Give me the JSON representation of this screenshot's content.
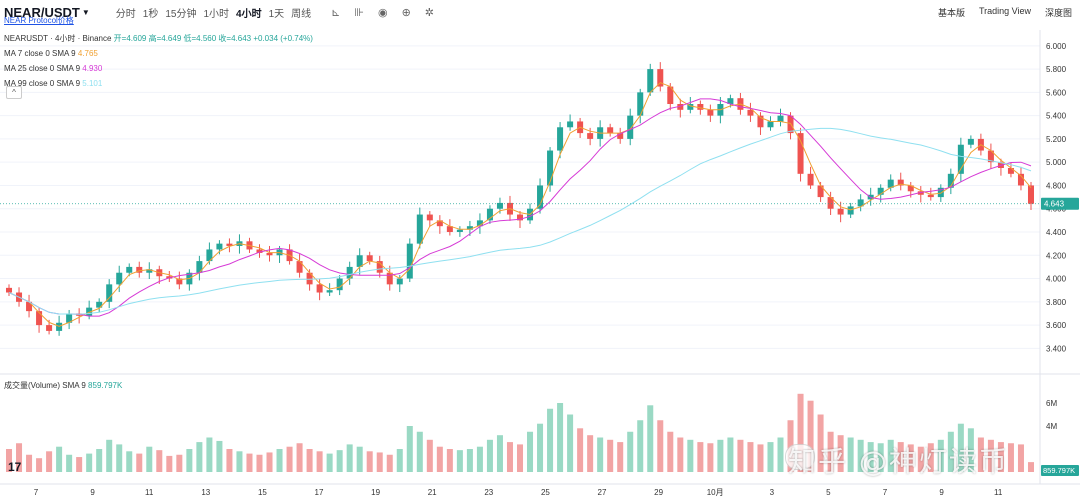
{
  "header": {
    "symbol": "NEAR/USDT",
    "sub_link": "NEAR Protocol价格",
    "intervals": [
      "分时",
      "1秒",
      "15分钟",
      "1小时",
      "4小时",
      "1天",
      "周线"
    ],
    "active_interval": "4小时",
    "views": [
      "基本版",
      "Trading View",
      "深度图"
    ]
  },
  "legend": {
    "title": "NEARUSDT · 4小时 · Binance",
    "ohlc": "开=4.609 高=4.649 低=4.560 收=4.643 +0.034 (+0.74%)",
    "ma7": {
      "label": "MA 7 close 0 SMA 9",
      "value": "4.765"
    },
    "ma25": {
      "label": "MA 25 close 0 SMA 9",
      "value": "4.930"
    },
    "ma99": {
      "label": "MA 99 close 0 SMA 9",
      "value": "5.101"
    },
    "collapse": "^"
  },
  "volume_legend": {
    "label": "成交量(Volume) SMA 9",
    "value": "859.797K"
  },
  "watermark": "知乎 @神灯读币",
  "logo": "17",
  "chart_data": {
    "type": "candlestick",
    "price_axis": {
      "ticks": [
        "6.000",
        "5.800",
        "5.600",
        "5.400",
        "5.200",
        "5.000",
        "4.800",
        "4.600",
        "4.400",
        "4.200",
        "4.000",
        "3.800",
        "3.600",
        "3.400"
      ],
      "range": [
        3.3,
        6.05
      ]
    },
    "volume_axis": {
      "ticks": [
        "6M",
        "4M"
      ],
      "range": [
        0,
        8
      ]
    },
    "x_ticks": [
      "7",
      "9",
      "11",
      "13",
      "15",
      "17",
      "19",
      "21",
      "23",
      "25",
      "27",
      "29",
      "10月",
      "3",
      "5",
      "7",
      "9",
      "11"
    ],
    "current_price": "4.643",
    "current_volume": "859.797K",
    "colors": {
      "up": "#26a69a",
      "down": "#ef5350",
      "vol_up": "#9ad9c4",
      "vol_down": "#f2a4a4",
      "ma7": "#f0a030",
      "ma25": "#d63ad6",
      "ma99": "#8fe0f0"
    },
    "close_path": [
      3.88,
      3.8,
      3.72,
      3.6,
      3.55,
      3.62,
      3.7,
      3.68,
      3.75,
      3.8,
      3.95,
      4.05,
      4.1,
      4.05,
      4.08,
      4.02,
      4.0,
      3.95,
      4.05,
      4.15,
      4.25,
      4.3,
      4.28,
      4.32,
      4.25,
      4.22,
      4.2,
      4.25,
      4.15,
      4.05,
      3.95,
      3.88,
      3.9,
      4.0,
      4.1,
      4.2,
      4.15,
      4.05,
      3.95,
      4.0,
      4.3,
      4.55,
      4.5,
      4.45,
      4.4,
      4.42,
      4.45,
      4.5,
      4.6,
      4.65,
      4.55,
      4.5,
      4.6,
      4.8,
      5.1,
      5.3,
      5.35,
      5.25,
      5.2,
      5.3,
      5.25,
      5.2,
      5.4,
      5.6,
      5.8,
      5.65,
      5.5,
      5.45,
      5.5,
      5.45,
      5.4,
      5.5,
      5.55,
      5.45,
      5.4,
      5.3,
      5.35,
      5.4,
      5.25,
      4.9,
      4.8,
      4.7,
      4.6,
      4.55,
      4.62,
      4.68,
      4.72,
      4.78,
      4.85,
      4.8,
      4.75,
      4.72,
      4.7,
      4.78,
      4.9,
      5.15,
      5.2,
      5.1,
      5.0,
      4.95,
      4.9,
      4.8,
      4.643
    ],
    "volume_path": [
      2.0,
      2.5,
      1.5,
      1.2,
      1.8,
      2.2,
      1.5,
      1.3,
      1.6,
      2.0,
      2.8,
      2.4,
      1.8,
      1.6,
      2.2,
      1.9,
      1.4,
      1.5,
      2.0,
      2.6,
      3.0,
      2.7,
      2.0,
      1.8,
      1.6,
      1.5,
      1.7,
      2.0,
      2.2,
      2.5,
      2.0,
      1.8,
      1.6,
      1.9,
      2.4,
      2.2,
      1.8,
      1.7,
      1.5,
      2.0,
      4.0,
      3.5,
      2.8,
      2.2,
      2.0,
      1.9,
      2.0,
      2.2,
      2.8,
      3.2,
      2.6,
      2.4,
      3.5,
      4.2,
      5.5,
      6.0,
      5.0,
      3.8,
      3.2,
      3.0,
      2.8,
      2.6,
      3.5,
      4.5,
      5.8,
      4.5,
      3.5,
      3.0,
      2.8,
      2.6,
      2.5,
      2.8,
      3.0,
      2.8,
      2.6,
      2.4,
      2.6,
      3.0,
      4.5,
      6.8,
      6.2,
      5.0,
      3.5,
      3.2,
      3.0,
      2.8,
      2.6,
      2.5,
      2.8,
      2.6,
      2.4,
      2.2,
      2.5,
      2.8,
      3.5,
      4.2,
      3.8,
      3.0,
      2.8,
      2.6,
      2.5,
      2.4,
      0.86
    ]
  }
}
